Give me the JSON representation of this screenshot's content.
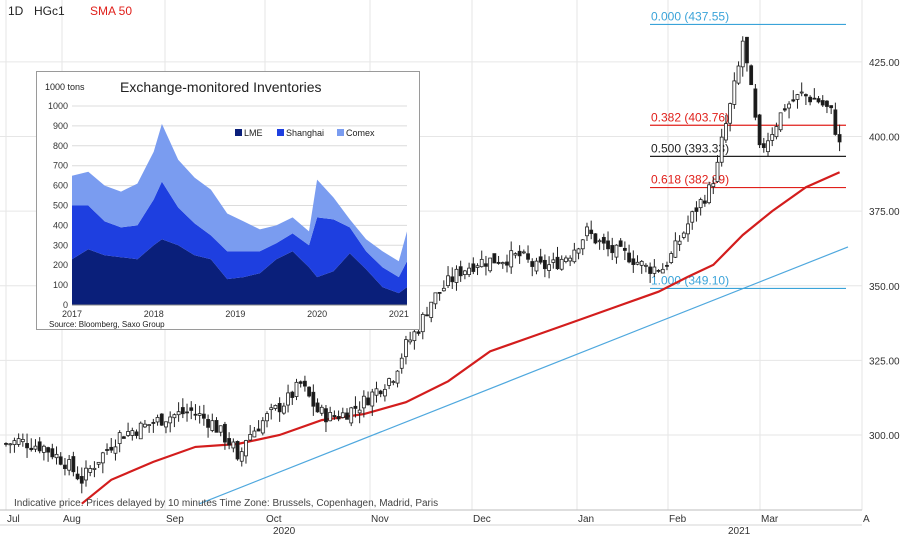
{
  "header": {
    "interval": "1D",
    "symbol": "HGc1",
    "indicator": "SMA 50",
    "indicator_color": "#e0201b"
  },
  "footer": {
    "note": "Indicative price. Prices delayed by 10 minutes   Time Zone: Brussels, Copenhagen, Madrid, Paris"
  },
  "colors": {
    "up_candle": "#ffffff",
    "down_candle": "#1a1a1a",
    "sma": "#d31d1d",
    "trendline": "#4fa8de",
    "fib_blue": "#3aa3d9",
    "fib_red": "#e0201b",
    "fib_black": "#222222",
    "lme": "#0a1f7a",
    "shanghai": "#1e3fe0",
    "comex": "#7a9cf0"
  },
  "chart_data": [
    {
      "type": "candlestick",
      "id": "copper-daily",
      "y_ticks": [
        "300.00",
        "325.00",
        "350.00",
        "375.00",
        "400.00",
        "425.00"
      ],
      "ylim": [
        277,
        442
      ],
      "x_month_labels": [
        "Jul",
        "Aug",
        "Sep",
        "Oct",
        "Nov",
        "Dec",
        "Jan",
        "Feb",
        "Mar",
        "A"
      ],
      "x_year_labels": [
        "2020",
        "2021"
      ],
      "close_anchors": [
        [
          0,
          297
        ],
        [
          3,
          298
        ],
        [
          9,
          296
        ],
        [
          14,
          291
        ],
        [
          18,
          285
        ],
        [
          22,
          292
        ],
        [
          27,
          300
        ],
        [
          33,
          303
        ],
        [
          38,
          306
        ],
        [
          44,
          308
        ],
        [
          49,
          304
        ],
        [
          54,
          296
        ],
        [
          55,
          290
        ],
        [
          57,
          299
        ],
        [
          62,
          306
        ],
        [
          67,
          312
        ],
        [
          70,
          317
        ],
        [
          74,
          308
        ],
        [
          77,
          306
        ],
        [
          80,
          307
        ],
        [
          84,
          310
        ],
        [
          88,
          315
        ],
        [
          92,
          320
        ],
        [
          95,
          330
        ],
        [
          98,
          336
        ],
        [
          101,
          345
        ],
        [
          105,
          351
        ],
        [
          108,
          355
        ],
        [
          112,
          358
        ],
        [
          118,
          359
        ],
        [
          122,
          360
        ],
        [
          126,
          356
        ],
        [
          130,
          357
        ],
        [
          134,
          361
        ],
        [
          138,
          368
        ],
        [
          143,
          362
        ],
        [
          148,
          360
        ],
        [
          152,
          356
        ],
        [
          156,
          356
        ],
        [
          158,
          360
        ],
        [
          161,
          368
        ],
        [
          164,
          376
        ],
        [
          167,
          382
        ],
        [
          169,
          390
        ],
        [
          170,
          398
        ],
        [
          172,
          410
        ],
        [
          174,
          423
        ],
        [
          175,
          432
        ],
        [
          177,
          415
        ],
        [
          179,
          395
        ],
        [
          182,
          402
        ],
        [
          185,
          410
        ],
        [
          189,
          414
        ],
        [
          193,
          412
        ],
        [
          196,
          408
        ],
        [
          198,
          397
        ]
      ],
      "sma50": {
        "label": "SMA 50",
        "points": [
          [
            18,
            277
          ],
          [
            25,
            285
          ],
          [
            35,
            291
          ],
          [
            45,
            296
          ],
          [
            55,
            297
          ],
          [
            65,
            300
          ],
          [
            75,
            305
          ],
          [
            85,
            307
          ],
          [
            95,
            311
          ],
          [
            105,
            318
          ],
          [
            115,
            328
          ],
          [
            125,
            333
          ],
          [
            135,
            338
          ],
          [
            145,
            343
          ],
          [
            155,
            348
          ],
          [
            162,
            353
          ],
          [
            168,
            357
          ],
          [
            175,
            367
          ],
          [
            182,
            375
          ],
          [
            190,
            383
          ],
          [
            198,
            388
          ]
        ]
      },
      "trendline": [
        [
          46,
          277
        ],
        [
          200,
          363
        ]
      ],
      "fibonacci": {
        "range_start_x": 152,
        "range_end_x": 199,
        "levels": [
          {
            "ratio": "0.000",
            "price": 437.55,
            "label": "0.000 (437.55)",
            "color": "#3aa3d9"
          },
          {
            "ratio": "0.382",
            "price": 403.76,
            "label": "0.382 (403.76)",
            "color": "#e0201b"
          },
          {
            "ratio": "0.500",
            "price": 393.33,
            "label": "0.500 (393.33)",
            "color": "#222222"
          },
          {
            "ratio": "0.618",
            "price": 382.89,
            "label": "0.618 (382.89)",
            "color": "#e0201b"
          },
          {
            "ratio": "1.000",
            "price": 349.1,
            "label": "1.000 (349.10)",
            "color": "#3aa3d9"
          }
        ]
      }
    },
    {
      "type": "area",
      "stacked": true,
      "id": "inventories",
      "title": "Exchange-monitored Inventories",
      "unit": "1000 tons",
      "source": "Source: Bloomberg, Saxo Group",
      "ylim": [
        0,
        1000
      ],
      "y_ticks": [
        0,
        100,
        200,
        300,
        400,
        500,
        600,
        700,
        800,
        900,
        1000
      ],
      "x_ticks": [
        2017,
        2018,
        2019,
        2020,
        2021
      ],
      "xlim": [
        2017.0,
        2021.1
      ],
      "legend": "top-right",
      "series": [
        {
          "name": "LME",
          "color": "#0a1f7a",
          "x": [
            2017.0,
            2017.2,
            2017.4,
            2017.6,
            2017.8,
            2018.0,
            2018.1,
            2018.3,
            2018.5,
            2018.7,
            2018.9,
            2019.1,
            2019.3,
            2019.5,
            2019.7,
            2019.9,
            2020.0,
            2020.2,
            2020.4,
            2020.6,
            2020.8,
            2021.0,
            2021.1
          ],
          "values": [
            230,
            280,
            250,
            240,
            230,
            300,
            330,
            300,
            250,
            230,
            130,
            140,
            160,
            230,
            270,
            190,
            140,
            170,
            260,
            180,
            90,
            60,
            90
          ]
        },
        {
          "name": "Shanghai",
          "color": "#1e3fe0",
          "x": [
            2017.0,
            2017.2,
            2017.4,
            2017.6,
            2017.8,
            2018.0,
            2018.1,
            2018.3,
            2018.5,
            2018.7,
            2018.9,
            2019.1,
            2019.3,
            2019.5,
            2019.7,
            2019.9,
            2020.0,
            2020.2,
            2020.4,
            2020.6,
            2020.8,
            2021.0,
            2021.1
          ],
          "values": [
            270,
            220,
            170,
            150,
            170,
            230,
            290,
            190,
            160,
            120,
            140,
            130,
            110,
            80,
            90,
            110,
            300,
            260,
            130,
            90,
            100,
            80,
            130
          ]
        },
        {
          "name": "Comex",
          "color": "#7a9cf0",
          "x": [
            2017.0,
            2017.2,
            2017.4,
            2017.6,
            2017.8,
            2018.0,
            2018.1,
            2018.3,
            2018.5,
            2018.7,
            2018.9,
            2019.1,
            2019.3,
            2019.5,
            2019.7,
            2019.9,
            2020.0,
            2020.2,
            2020.4,
            2020.6,
            2020.8,
            2021.0,
            2021.1
          ],
          "values": [
            150,
            170,
            180,
            180,
            210,
            240,
            290,
            240,
            230,
            230,
            190,
            150,
            110,
            90,
            80,
            70,
            190,
            110,
            40,
            60,
            80,
            80,
            150
          ]
        }
      ]
    }
  ]
}
